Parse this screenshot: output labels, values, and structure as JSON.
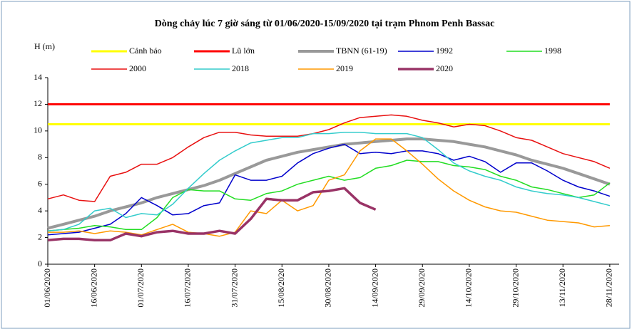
{
  "chart_data": {
    "type": "line",
    "title": "Dòng chảy lúc 7 giờ sáng từ 01/06/2020-15/09/2020 tại trạm Phnom Penh Bassac",
    "y_label": "H (m)",
    "x": [
      "01/06/2020",
      "06/06/2020",
      "11/06/2020",
      "16/06/2020",
      "21/06/2020",
      "26/06/2020",
      "01/07/2020",
      "06/07/2020",
      "11/07/2020",
      "16/07/2020",
      "21/07/2020",
      "26/07/2020",
      "31/07/2020",
      "05/08/2020",
      "10/08/2020",
      "15/08/2020",
      "20/08/2020",
      "25/08/2020",
      "30/08/2020",
      "04/09/2020",
      "09/09/2020",
      "14/09/2020",
      "19/09/2020",
      "24/09/2020",
      "29/09/2020",
      "04/10/2020",
      "09/10/2020",
      "14/10/2020",
      "19/10/2020",
      "24/10/2020",
      "29/10/2020",
      "03/11/2020",
      "08/11/2020",
      "13/11/2020",
      "18/11/2020",
      "23/11/2020",
      "28/11/2020"
    ],
    "xlim": [
      "01/06/2020",
      "01/12/2020"
    ],
    "xticks": [
      "01/06/2020",
      "16/06/2020",
      "01/07/2020",
      "16/07/2020",
      "31/07/2020",
      "15/08/2020",
      "30/08/2020",
      "14/09/2020",
      "29/09/2020",
      "14/10/2020",
      "29/10/2020",
      "13/11/2020",
      "28/11/2020"
    ],
    "ylim": [
      0,
      14
    ],
    "yticks": [
      0,
      2,
      4,
      6,
      8,
      10,
      12,
      14
    ],
    "grid": false,
    "series": [
      {
        "name": "Cảnh báo",
        "color": "#ffff00",
        "width": 3,
        "values": [
          10.5,
          10.5,
          10.5,
          10.5,
          10.5,
          10.5,
          10.5,
          10.5,
          10.5,
          10.5,
          10.5,
          10.5,
          10.5,
          10.5,
          10.5,
          10.5,
          10.5,
          10.5,
          10.5,
          10.5,
          10.5,
          10.5,
          10.5,
          10.5,
          10.5,
          10.5,
          10.5,
          10.5,
          10.5,
          10.5,
          10.5,
          10.5,
          10.5,
          10.5,
          10.5,
          10.5,
          10.5
        ]
      },
      {
        "name": "Lũ lớn",
        "color": "#ff0000",
        "width": 3,
        "values": [
          12,
          12,
          12,
          12,
          12,
          12,
          12,
          12,
          12,
          12,
          12,
          12,
          12,
          12,
          12,
          12,
          12,
          12,
          12,
          12,
          12,
          12,
          12,
          12,
          12,
          12,
          12,
          12,
          12,
          12,
          12,
          12,
          12,
          12,
          12,
          12,
          12
        ]
      },
      {
        "name": "TBNN (61-19)",
        "color": "#999999",
        "width": 4,
        "values": [
          2.7,
          3.0,
          3.3,
          3.6,
          4.0,
          4.3,
          4.6,
          5.0,
          5.3,
          5.6,
          5.9,
          6.3,
          6.8,
          7.3,
          7.8,
          8.1,
          8.4,
          8.6,
          8.8,
          9.0,
          9.1,
          9.2,
          9.3,
          9.4,
          9.4,
          9.3,
          9.2,
          9.0,
          8.8,
          8.5,
          8.2,
          7.8,
          7.5,
          7.2,
          6.8,
          6.4,
          6.0
        ]
      },
      {
        "name": "1992",
        "color": "#0000cc",
        "width": 1.5,
        "values": [
          2.2,
          2.3,
          2.4,
          2.7,
          3.0,
          3.8,
          5.0,
          4.4,
          3.7,
          3.8,
          4.4,
          4.6,
          6.7,
          6.3,
          6.3,
          6.6,
          7.6,
          8.3,
          8.7,
          9.0,
          8.3,
          8.4,
          8.3,
          8.5,
          8.5,
          8.3,
          7.8,
          8.1,
          7.7,
          6.9,
          7.6,
          7.6,
          7.0,
          6.3,
          5.8,
          5.5,
          5.1
        ]
      },
      {
        "name": "1998",
        "color": "#22dd22",
        "width": 1.5,
        "values": [
          2.5,
          2.6,
          2.7,
          2.9,
          2.8,
          2.6,
          2.6,
          3.5,
          5.0,
          5.6,
          5.5,
          5.5,
          4.9,
          4.8,
          5.3,
          5.5,
          6.0,
          6.3,
          6.6,
          6.3,
          6.5,
          7.2,
          7.4,
          7.8,
          7.7,
          7.7,
          7.4,
          7.3,
          7.1,
          6.6,
          6.3,
          5.8,
          5.6,
          5.3,
          5.0,
          5.2,
          6.1
        ]
      },
      {
        "name": "2000",
        "color": "#e81010",
        "width": 1.5,
        "values": [
          4.9,
          5.2,
          4.8,
          4.7,
          6.6,
          6.9,
          7.5,
          7.5,
          8.0,
          8.8,
          9.5,
          9.9,
          9.9,
          9.7,
          9.6,
          9.6,
          9.6,
          9.8,
          10.1,
          10.6,
          11.0,
          11.1,
          11.2,
          11.1,
          10.8,
          10.6,
          10.3,
          10.5,
          10.4,
          10.0,
          9.5,
          9.3,
          8.8,
          8.3,
          8.0,
          7.7,
          7.2
        ]
      },
      {
        "name": "2018",
        "color": "#33cccc",
        "width": 1.5,
        "values": [
          2.5,
          2.6,
          3.0,
          4.0,
          4.2,
          3.5,
          3.8,
          3.7,
          4.5,
          5.7,
          6.8,
          7.8,
          8.5,
          9.1,
          9.3,
          9.5,
          9.5,
          9.8,
          9.8,
          9.9,
          9.9,
          9.8,
          9.8,
          9.8,
          9.5,
          8.6,
          7.6,
          7.0,
          6.6,
          6.3,
          5.8,
          5.5,
          5.3,
          5.2,
          5.0,
          4.7,
          4.4
        ]
      },
      {
        "name": "2019",
        "color": "#ff9900",
        "width": 1.5,
        "values": [
          2.4,
          2.4,
          2.5,
          2.3,
          2.5,
          2.4,
          2.2,
          2.6,
          3.0,
          2.4,
          2.3,
          2.1,
          2.4,
          4.0,
          3.8,
          4.8,
          4.0,
          4.4,
          6.3,
          6.7,
          8.5,
          9.4,
          9.4,
          8.5,
          7.5,
          6.4,
          5.5,
          4.8,
          4.3,
          4.0,
          3.9,
          3.6,
          3.3,
          3.2,
          3.1,
          2.8,
          2.9
        ]
      },
      {
        "name": "2020",
        "color": "#993366",
        "width": 3.5,
        "values": [
          1.8,
          1.9,
          1.9,
          1.8,
          1.8,
          2.3,
          2.1,
          2.4,
          2.5,
          2.3,
          2.3,
          2.5,
          2.3,
          3.4,
          4.9,
          4.8,
          4.8,
          5.4,
          5.5,
          5.7,
          4.6,
          4.1,
          null,
          null,
          null,
          null,
          null,
          null,
          null,
          null,
          null,
          null,
          null,
          null,
          null,
          null,
          null
        ]
      }
    ]
  }
}
